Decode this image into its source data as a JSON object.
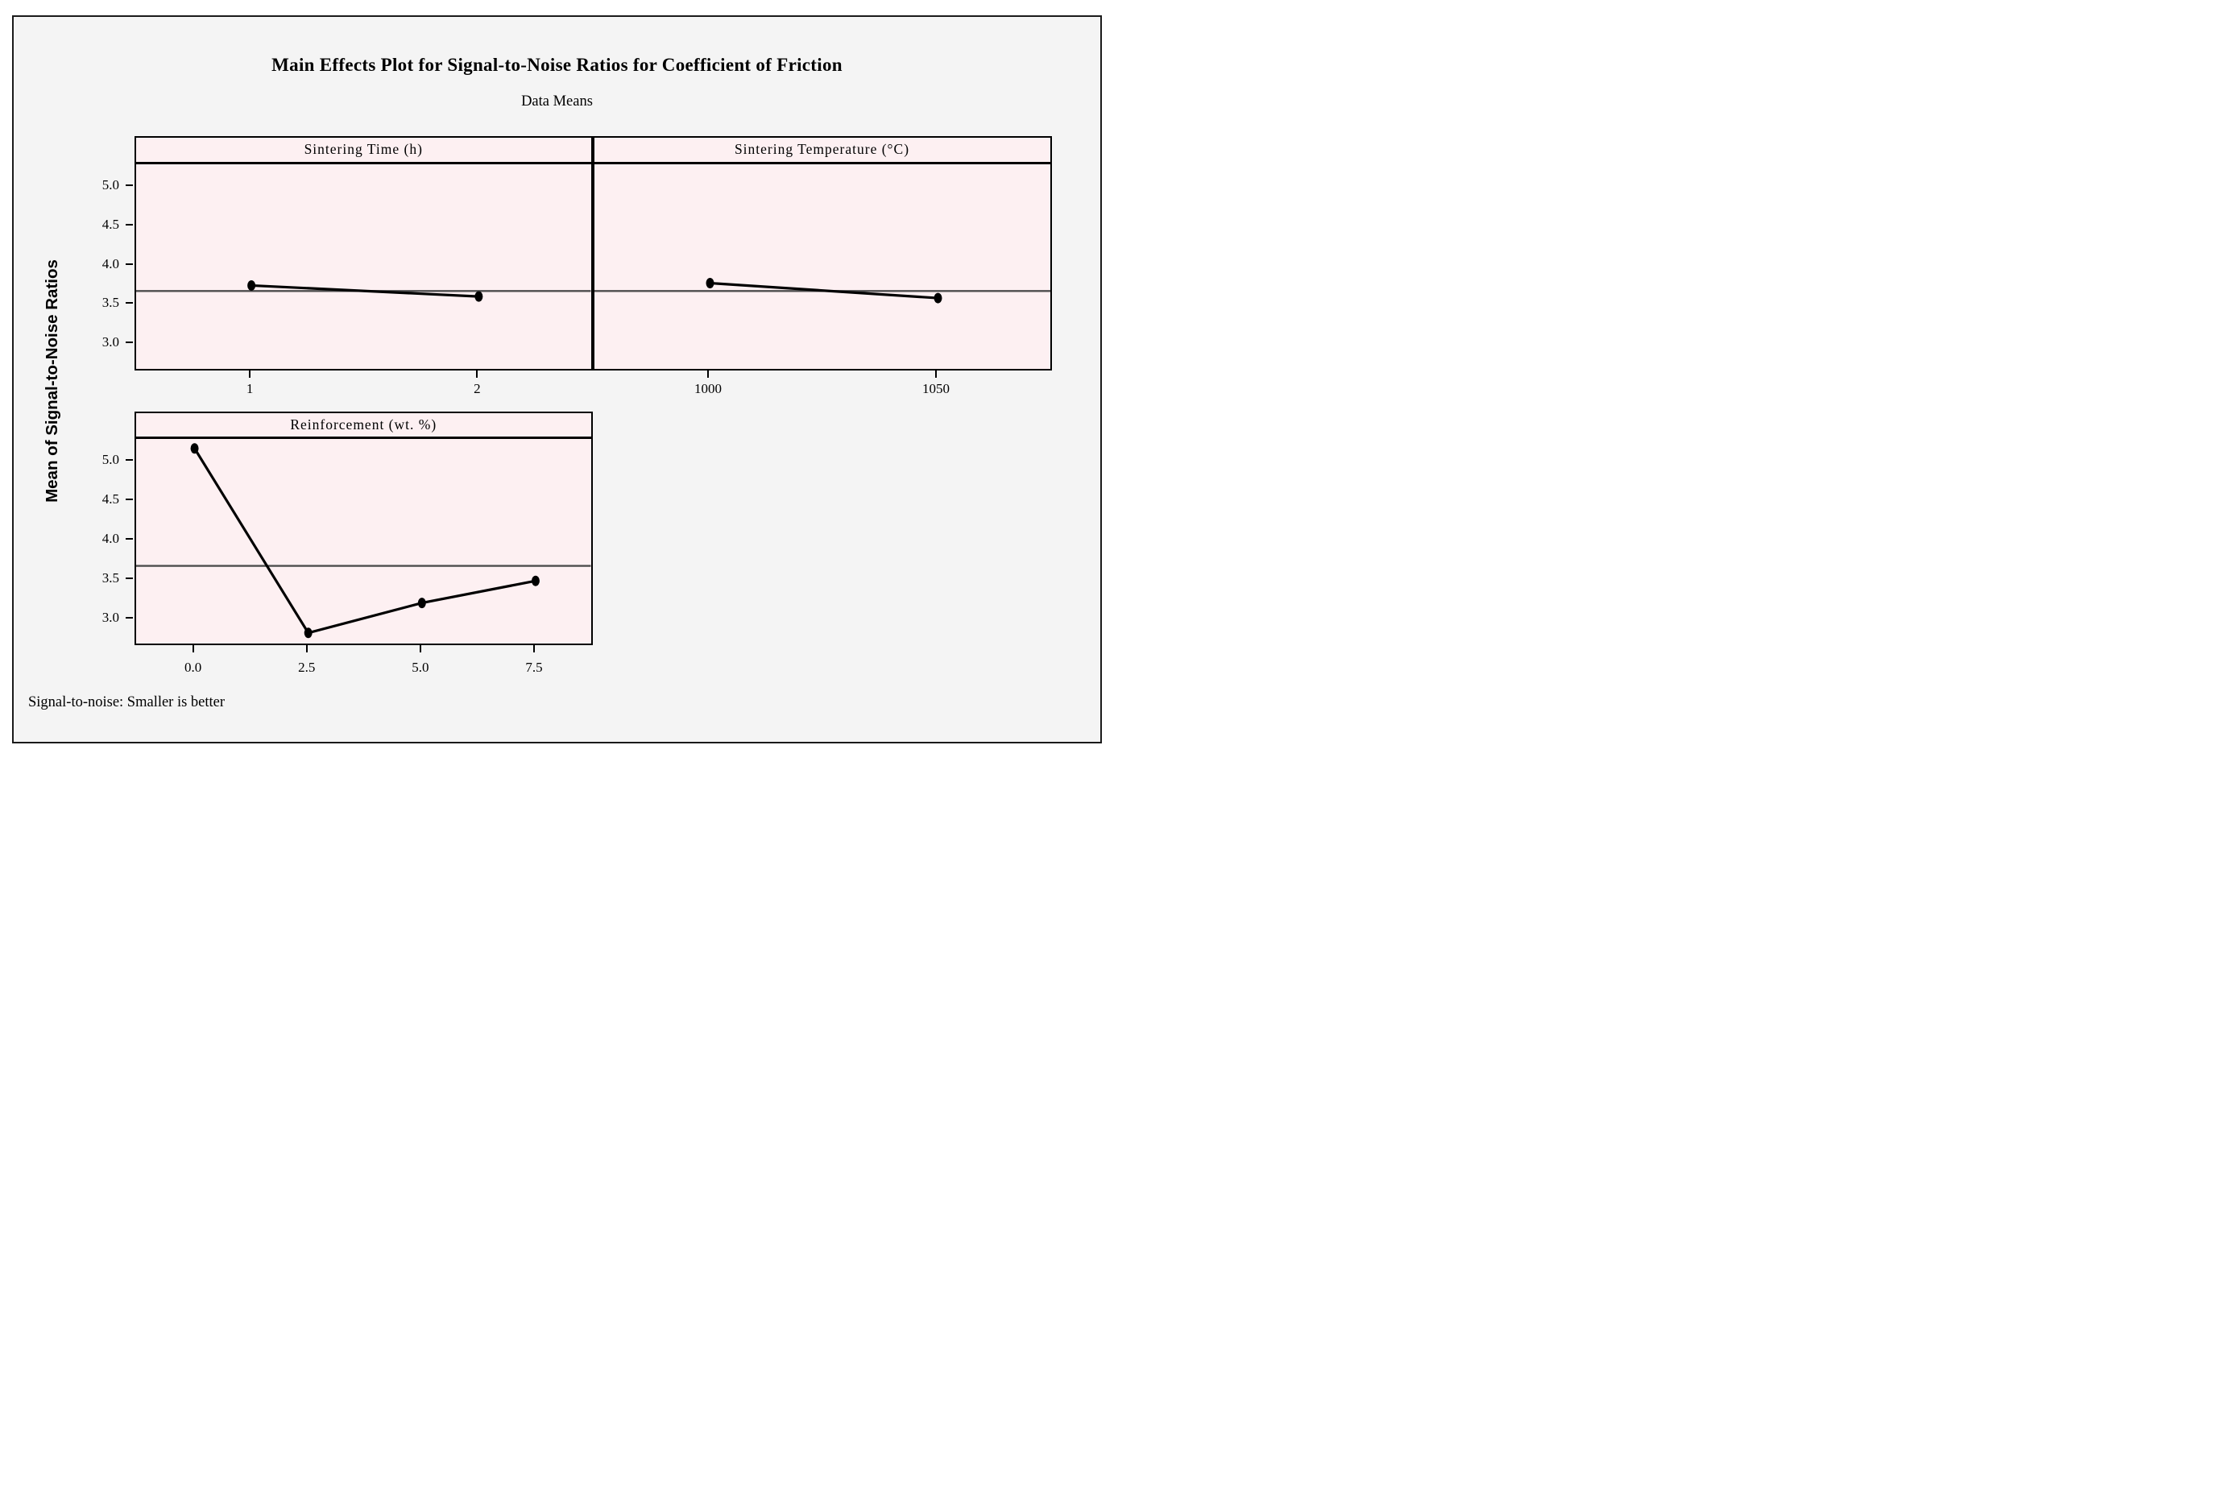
{
  "title": "Main Effects Plot for Signal-to-Noise Ratios for Coefficient of Friction",
  "subtitle": "Data Means",
  "footer": "Signal-to-noise: Smaller is better",
  "y_axis": {
    "label": "Mean of Signal-to-Noise Ratios",
    "tick_labels": [
      "5.0",
      "4.5",
      "4.0",
      "3.5",
      "3.0"
    ],
    "range": [
      2.67,
      5.27
    ]
  },
  "reference_mean": 3.66,
  "colors": {
    "figure_bg": "#f4f4f4",
    "panel_bg": "#fdf0f2",
    "frame": "#1a1a1a",
    "data_line": "#000000",
    "marker": "#000000",
    "reference_line": "#4d4d4d"
  },
  "chart_data": [
    {
      "type": "line",
      "title": "Sintering Time (h)",
      "categories": [
        "1",
        "2"
      ],
      "values": [
        3.73,
        3.59
      ],
      "ylabel": "Mean of Signal-to-Noise Ratios",
      "ylim": [
        2.67,
        5.27
      ],
      "grid": false,
      "reference_mean": 3.66
    },
    {
      "type": "line",
      "title": "Sintering Temperature (°C)",
      "categories": [
        "1000",
        "1050"
      ],
      "values": [
        3.76,
        3.57
      ],
      "ylabel": "Mean of Signal-to-Noise Ratios",
      "ylim": [
        2.67,
        5.27
      ],
      "grid": false,
      "reference_mean": 3.66
    },
    {
      "type": "line",
      "title": "Reinforcement (wt. %)",
      "categories": [
        "0.0",
        "2.5",
        "5.0",
        "7.5"
      ],
      "values": [
        5.15,
        2.81,
        3.19,
        3.47
      ],
      "ylabel": "Mean of Signal-to-Noise Ratios",
      "ylim": [
        2.67,
        5.27
      ],
      "grid": false,
      "reference_mean": 3.66
    }
  ]
}
